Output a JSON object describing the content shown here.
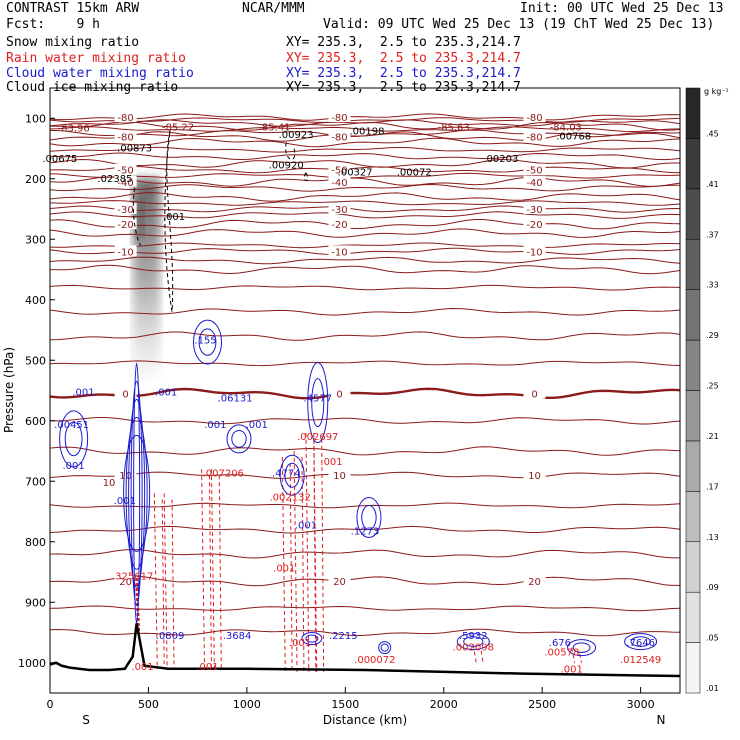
{
  "header": {
    "title_left": "CONTRAST 15km ARW",
    "fcst": "Fcst:    9 h",
    "center": "NCAR/MMM",
    "init": "Init: 00 UTC Wed 25 Dec 13",
    "valid": "Valid: 09 UTC Wed 25 Dec 13 (19 ChT Wed 25 Dec 13)"
  },
  "legend": [
    {
      "label": "Snow mixing ratio",
      "xy": "XY= 235.3,  2.5 to 235.3,214.7",
      "color": "#000000"
    },
    {
      "label": "Rain water mixing ratio",
      "xy": "XY= 235.3,  2.5 to 235.3,214.7",
      "color": "#e02020"
    },
    {
      "label": "Cloud water mixing ratio",
      "xy": "XY= 235.3,  2.5 to 235.3,214.7",
      "color": "#1a1ad0"
    },
    {
      "label": "Cloud ice mixing ratio",
      "xy": "XY= 235.3,  2.5 to 235.3,214.7",
      "color": "#000000"
    }
  ],
  "chart_data": {
    "type": "contour",
    "xlabel": "Distance (km)",
    "ylabel": "Pressure (hPa)",
    "xlim": [
      0,
      3200
    ],
    "ylim": [
      1050,
      50
    ],
    "x_ticks": [
      0,
      500,
      1000,
      1500,
      2000,
      2500,
      3000
    ],
    "x_tick_labels": [
      "0",
      "500",
      "1000",
      "1500",
      "2000",
      "2500",
      "3000"
    ],
    "y_ticks": [
      100,
      200,
      300,
      400,
      500,
      600,
      700,
      800,
      900,
      1000
    ],
    "y_tick_labels": [
      "100",
      "200",
      "300",
      "400",
      "500",
      "600",
      "700",
      "800",
      "900",
      "1000"
    ],
    "left_end_label": "S",
    "right_end_label": "N",
    "colorbar": {
      "unit": "g kg⁻¹",
      "levels": [
        0.01,
        0.05,
        0.09,
        0.13,
        0.17,
        0.21,
        0.25,
        0.29,
        0.33,
        0.37,
        0.41,
        0.45
      ],
      "labels": [
        ".01",
        ".05",
        ".09",
        ".13",
        ".17",
        ".21",
        ".25",
        ".29",
        ".33",
        ".37",
        ".41",
        ".45"
      ]
    },
    "temperature_contours": [
      {
        "p": 98,
        "label": "-80"
      },
      {
        "p": 130,
        "label": "-80"
      },
      {
        "p": 185,
        "label": "-50"
      },
      {
        "p": 205,
        "label": "-40"
      },
      {
        "p": 250,
        "label": "-30"
      },
      {
        "p": 275,
        "label": "-20"
      },
      {
        "p": 320,
        "label": "-10"
      },
      {
        "p": 555,
        "label": "0"
      },
      {
        "p": 690,
        "label": "10"
      },
      {
        "p": 865,
        "label": "20"
      }
    ],
    "annotations": [
      {
        "x": 120,
        "p": 122,
        "text": "-83.96",
        "color": "#8b1a1a"
      },
      {
        "x": 650,
        "p": 120,
        "text": "-85.22",
        "color": "#8b1a1a"
      },
      {
        "x": 1140,
        "p": 120,
        "text": "-85.41",
        "color": "#8b1a1a"
      },
      {
        "x": 2050,
        "p": 120,
        "text": "-85.63",
        "color": "#8b1a1a"
      },
      {
        "x": 2620,
        "p": 120,
        "text": "-84.03",
        "color": "#8b1a1a"
      },
      {
        "x": 1250,
        "p": 133,
        "text": ".00923",
        "color": "#000000"
      },
      {
        "x": 1610,
        "p": 127,
        "text": ".00198",
        "color": "#000000"
      },
      {
        "x": 2660,
        "p": 135,
        "text": ".00768",
        "color": "#000000"
      },
      {
        "x": 430,
        "p": 155,
        "text": ".00873",
        "color": "#000000"
      },
      {
        "x": 50,
        "p": 172,
        "text": ".00675",
        "color": "#000000"
      },
      {
        "x": 1200,
        "p": 183,
        "text": ".00920",
        "color": "#000000"
      },
      {
        "x": 1550,
        "p": 195,
        "text": ".00327",
        "color": "#000000"
      },
      {
        "x": 1850,
        "p": 195,
        "text": ".00072",
        "color": "#000000"
      },
      {
        "x": 2290,
        "p": 172,
        "text": ".00203",
        "color": "#000000"
      },
      {
        "x": 330,
        "p": 205,
        "text": ".02385",
        "color": "#000000"
      },
      {
        "x": 630,
        "p": 268,
        "text": ".001",
        "color": "#000000"
      },
      {
        "x": 790,
        "p": 472,
        "text": ".155",
        "color": "#1a1ad0"
      },
      {
        "x": 170,
        "p": 558,
        "text": ".001",
        "color": "#1a1ad0"
      },
      {
        "x": 590,
        "p": 558,
        "text": ".001",
        "color": "#1a1ad0"
      },
      {
        "x": 940,
        "p": 568,
        "text": ".06131",
        "color": "#1a1ad0"
      },
      {
        "x": 1360,
        "p": 568,
        "text": ".4577",
        "color": "#1a1ad0"
      },
      {
        "x": 840,
        "p": 612,
        "text": ".001",
        "color": "#1a1ad0"
      },
      {
        "x": 1050,
        "p": 612,
        "text": ".001",
        "color": "#1a1ad0"
      },
      {
        "x": 110,
        "p": 612,
        "text": ".00451",
        "color": "#1a1ad0"
      },
      {
        "x": 1360,
        "p": 632,
        "text": ".002697",
        "color": "#e02020"
      },
      {
        "x": 880,
        "p": 692,
        "text": ".007206",
        "color": "#e02020"
      },
      {
        "x": 1200,
        "p": 692,
        "text": ".4774",
        "color": "#1a1ad0"
      },
      {
        "x": 1430,
        "p": 673,
        "text": ".001",
        "color": "#e02020"
      },
      {
        "x": 120,
        "p": 680,
        "text": ".001",
        "color": "#1a1ad0"
      },
      {
        "x": 300,
        "p": 708,
        "text": "10",
        "color": "#8b1a1a"
      },
      {
        "x": 380,
        "p": 738,
        "text": ".001",
        "color": "#1a1ad0"
      },
      {
        "x": 1220,
        "p": 732,
        "text": ".002132",
        "color": "#e02020"
      },
      {
        "x": 1300,
        "p": 778,
        "text": ".001",
        "color": "#1a1ad0"
      },
      {
        "x": 1600,
        "p": 788,
        "text": ".1273",
        "color": "#1a1ad0"
      },
      {
        "x": 1190,
        "p": 849,
        "text": ".001",
        "color": "#e02020"
      },
      {
        "x": 420,
        "p": 862,
        "text": ".325617",
        "color": "#e02020"
      },
      {
        "x": 610,
        "p": 961,
        "text": ".0809",
        "color": "#1a1ad0"
      },
      {
        "x": 950,
        "p": 961,
        "text": ".3684",
        "color": "#1a1ad0"
      },
      {
        "x": 1490,
        "p": 961,
        "text": ".2215",
        "color": "#1a1ad0"
      },
      {
        "x": 1270,
        "p": 972,
        "text": ".001",
        "color": "#e02020"
      },
      {
        "x": 2150,
        "p": 961,
        "text": ".5932",
        "color": "#1a1ad0"
      },
      {
        "x": 2590,
        "p": 972,
        "text": ".676",
        "color": "#1a1ad0"
      },
      {
        "x": 3000,
        "p": 972,
        "text": ".7646",
        "color": "#1a1ad0"
      },
      {
        "x": 2150,
        "p": 980,
        "text": ".002098",
        "color": "#e02020"
      },
      {
        "x": 2600,
        "p": 988,
        "text": ".00578",
        "color": "#e02020"
      },
      {
        "x": 1650,
        "p": 1000,
        "text": ".000072",
        "color": "#e02020"
      },
      {
        "x": 3000,
        "p": 1000,
        "text": ".012549",
        "color": "#e02020"
      },
      {
        "x": 470,
        "p": 1012,
        "text": ".001",
        "color": "#e02020"
      },
      {
        "x": 800,
        "p": 1012,
        "text": ".001",
        "color": "#e02020"
      },
      {
        "x": 2650,
        "p": 1016,
        "text": ".001",
        "color": "#e02020"
      }
    ]
  }
}
